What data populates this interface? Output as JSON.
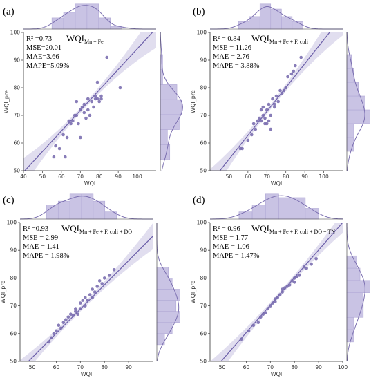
{
  "chart_data": [
    {
      "type": "scatter",
      "panel_label": "(a)",
      "title_main": "WQI",
      "title_sub": "Mn + Fe",
      "stats": [
        "R² =0.73",
        "MSE=20.01",
        "MAE=3.66",
        "MAPE=5.09%"
      ],
      "xlabel": "WQI",
      "ylabel": "WQI_pre",
      "xlim": [
        40,
        110
      ],
      "ylim": [
        50,
        100
      ],
      "xticks": [
        40,
        50,
        60,
        70,
        80,
        90,
        100
      ],
      "yticks": [
        50,
        60,
        70,
        80,
        90,
        100
      ],
      "fit_line": [
        [
          40,
          49.5
        ],
        [
          110,
          101.5
        ]
      ],
      "x": [
        56,
        57,
        59,
        61,
        62,
        63,
        64,
        65,
        66,
        67,
        68,
        68,
        69,
        70,
        70,
        71,
        72,
        72,
        73,
        74,
        74,
        75,
        76,
        77,
        78,
        78,
        79,
        79,
        80,
        81,
        81,
        84,
        91
      ],
      "y": [
        55,
        59,
        58,
        63,
        55,
        62,
        68,
        67,
        68,
        70,
        70,
        75,
        67,
        72,
        62,
        73,
        71,
        74,
        69,
        72,
        76,
        70,
        75,
        73,
        77,
        76,
        76,
        82,
        75,
        77,
        76,
        91,
        80
      ]
    },
    {
      "type": "scatter",
      "panel_label": "(b)",
      "title_main": "WQI",
      "title_sub": "Mn + Fe + F. coli",
      "stats": [
        "R² = 0.84",
        "MSE = 11.26",
        "MAE = 2.76",
        "MAPE = 3.88%"
      ],
      "xlabel": "WQI",
      "ylabel": "WQI_pre",
      "xlim": [
        40,
        110
      ],
      "ylim": [
        50,
        100
      ],
      "xticks": [
        50,
        60,
        70,
        80,
        90,
        100
      ],
      "yticks": [
        50,
        60,
        70,
        80,
        90,
        100
      ],
      "fit_line": [
        [
          40,
          45.5
        ],
        [
          110,
          106
        ]
      ],
      "x": [
        56,
        57,
        60,
        62,
        63,
        64,
        65,
        66,
        67,
        67,
        68,
        68,
        69,
        69,
        70,
        70,
        71,
        71,
        72,
        72,
        73,
        74,
        74,
        75,
        76,
        77,
        78,
        79,
        80,
        81,
        83,
        84,
        85,
        88
      ],
      "y": [
        58,
        58,
        61,
        63,
        67,
        65,
        68,
        69,
        68,
        72,
        70,
        73,
        67,
        69,
        67,
        72,
        68,
        74,
        70,
        65,
        76,
        74,
        73,
        77,
        75,
        79,
        78,
        79,
        80,
        84,
        85,
        86,
        88,
        91
      ]
    },
    {
      "type": "scatter",
      "panel_label": "(c)",
      "title_main": "WQI",
      "title_sub": "Mn + Fe + F. coli + DO",
      "stats": [
        "R² =0.93",
        "MSE = 2.99",
        "MAE = 1.41",
        "MAPE = 1.98%"
      ],
      "xlabel": "WQI",
      "ylabel": "WQI_pre",
      "xlim": [
        45,
        100
      ],
      "ylim": [
        50,
        100
      ],
      "xticks": [
        50,
        60,
        70,
        80,
        90
      ],
      "yticks": [
        50,
        60,
        70,
        80,
        90,
        100
      ],
      "fit_line": [
        [
          45,
          47
        ],
        [
          100,
          95
        ]
      ],
      "x": [
        57,
        58,
        59,
        60,
        61,
        62,
        63,
        64,
        65,
        66,
        67,
        68,
        68,
        69,
        70,
        70,
        71,
        72,
        72,
        73,
        74,
        75,
        75,
        76,
        77,
        78,
        79,
        80,
        82,
        84
      ],
      "y": [
        57,
        58.5,
        60,
        61,
        63,
        62,
        64,
        65,
        66,
        67,
        66.5,
        68,
        69,
        67,
        69,
        71,
        72,
        70,
        73,
        72,
        74,
        76,
        73,
        75,
        77,
        79,
        78,
        80,
        81,
        83
      ]
    },
    {
      "type": "scatter",
      "panel_label": "(d)",
      "title_main": "WQI",
      "title_sub": "Mn + Fe + F. coli + DO + TN",
      "stats": [
        "R² = 0.96",
        "MSE = 1.77",
        "MAE = 1.06",
        "MAPE = 1.47%"
      ],
      "xlabel": "WQI",
      "ylabel": "WQI_pre",
      "xlim": [
        45,
        100
      ],
      "ylim": [
        50,
        100
      ],
      "xticks": [
        50,
        60,
        70,
        80,
        90,
        100
      ],
      "yticks": [
        50,
        60,
        70,
        80,
        90,
        100
      ],
      "fit_line": [
        [
          45,
          45.5
        ],
        [
          100,
          100
        ]
      ],
      "x": [
        58,
        61,
        63,
        65,
        66,
        67,
        68,
        69,
        70,
        71,
        72,
        72,
        73,
        74,
        75,
        75,
        76,
        77,
        78,
        79,
        80,
        80,
        81,
        82,
        84,
        85,
        87,
        89
      ],
      "y": [
        58,
        61,
        63,
        64,
        66,
        67,
        67.5,
        69,
        70,
        71,
        71.5,
        72.5,
        73,
        74,
        75,
        76,
        76.5,
        77,
        77.5,
        79,
        78.5,
        80,
        80.5,
        81,
        84,
        83.5,
        85,
        87
      ]
    }
  ],
  "colors": {
    "marker": "#7b6fb0",
    "line": "#6a5da8",
    "band": "#c8c2e2",
    "hist_fill": "#c9c3e4",
    "hist_edge": "#b1a9d6",
    "kde": "#7b6fb0",
    "axis": "#333333"
  }
}
